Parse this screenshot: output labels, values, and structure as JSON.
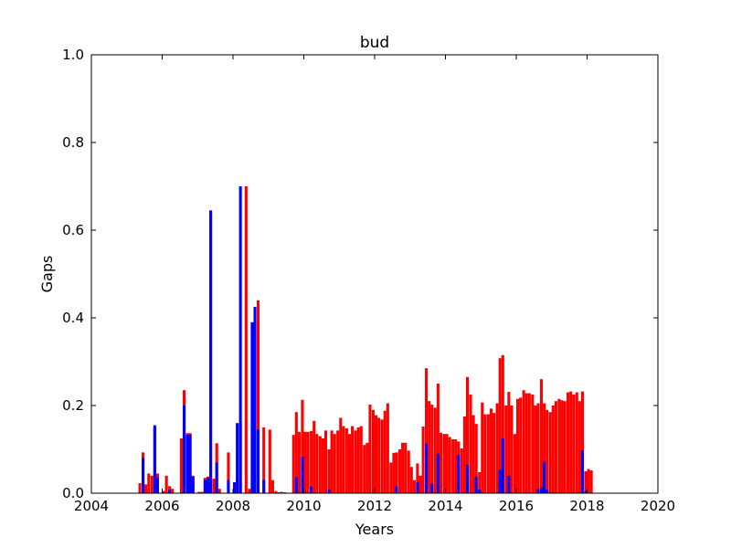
{
  "chart_data": {
    "type": "bar",
    "title": "bud",
    "xlabel": "Years",
    "ylabel": "Gaps",
    "xlim": [
      2004,
      2020
    ],
    "ylim": [
      0,
      1.0
    ],
    "xticks": [
      "2004",
      "2006",
      "2008",
      "2010",
      "2012",
      "2014",
      "2016",
      "2018",
      "2020"
    ],
    "yticks": [
      "0.0",
      "0.2",
      "0.4",
      "0.6",
      "0.8",
      "1.0"
    ],
    "grid": false,
    "bar_width_years": 0.08,
    "series": [
      {
        "color": "#ff0000",
        "x": [
          2005.33,
          2005.42,
          2005.5,
          2005.58,
          2005.67,
          2005.75,
          2005.83,
          2006.0,
          2006.08,
          2006.17,
          2006.25,
          2006.5,
          2006.58,
          2006.67,
          2006.75,
          2006.83,
          2007.0,
          2007.08,
          2007.17,
          2007.25,
          2007.33,
          2007.42,
          2007.5,
          2007.58,
          2007.83,
          2008.0,
          2008.08,
          2008.17,
          2008.33,
          2008.42,
          2008.5,
          2008.58,
          2008.67,
          2008.83,
          2009.0,
          2009.08,
          2009.17,
          2009.25,
          2009.33,
          2009.42,
          2009.67,
          2009.75,
          2009.83,
          2009.92,
          2010.0,
          2010.08,
          2010.17,
          2010.25,
          2010.33,
          2010.42,
          2010.5,
          2010.58,
          2010.67,
          2010.75,
          2010.83,
          2010.92,
          2011.0,
          2011.08,
          2011.17,
          2011.25,
          2011.33,
          2011.42,
          2011.5,
          2011.58,
          2011.67,
          2011.75,
          2011.83,
          2011.92,
          2012.0,
          2012.08,
          2012.17,
          2012.25,
          2012.33,
          2012.42,
          2012.5,
          2012.58,
          2012.67,
          2012.75,
          2012.83,
          2012.92,
          2013.0,
          2013.08,
          2013.17,
          2013.25,
          2013.33,
          2013.42,
          2013.5,
          2013.58,
          2013.67,
          2013.75,
          2013.83,
          2013.92,
          2014.0,
          2014.08,
          2014.17,
          2014.25,
          2014.33,
          2014.42,
          2014.5,
          2014.58,
          2014.67,
          2014.75,
          2014.83,
          2014.92,
          2015.0,
          2015.08,
          2015.17,
          2015.25,
          2015.33,
          2015.42,
          2015.5,
          2015.58,
          2015.67,
          2015.75,
          2015.83,
          2015.92,
          2016.0,
          2016.08,
          2016.17,
          2016.25,
          2016.33,
          2016.42,
          2016.5,
          2016.58,
          2016.67,
          2016.75,
          2016.83,
          2016.92,
          2017.0,
          2017.08,
          2017.17,
          2017.25,
          2017.33,
          2017.42,
          2017.5,
          2017.58,
          2017.67,
          2017.75,
          2017.83,
          2017.92,
          2018.0,
          2018.08
        ],
        "values": [
          0.023,
          0.093,
          0.02,
          0.045,
          0.04,
          0.15,
          0.045,
          0.005,
          0.04,
          0.016,
          0.01,
          0.125,
          0.235,
          0.137,
          0.137,
          0.04,
          0.003,
          0.003,
          0.035,
          0.038,
          0.645,
          0.033,
          0.114,
          0.01,
          0.093,
          0.005,
          0.03,
          0.16,
          0.7,
          0.01,
          0.005,
          0.39,
          0.44,
          0.15,
          0.145,
          0.03,
          0.005,
          0.002,
          0.003,
          0.002,
          0.133,
          0.185,
          0.14,
          0.213,
          0.14,
          0.14,
          0.142,
          0.165,
          0.135,
          0.13,
          0.125,
          0.143,
          0.1,
          0.143,
          0.135,
          0.143,
          0.172,
          0.153,
          0.148,
          0.135,
          0.153,
          0.143,
          0.15,
          0.153,
          0.11,
          0.115,
          0.202,
          0.19,
          0.178,
          0.172,
          0.168,
          0.188,
          0.205,
          0.07,
          0.092,
          0.093,
          0.1,
          0.115,
          0.115,
          0.097,
          0.06,
          0.03,
          0.068,
          0.04,
          0.152,
          0.285,
          0.21,
          0.202,
          0.195,
          0.25,
          0.138,
          0.135,
          0.135,
          0.128,
          0.123,
          0.123,
          0.118,
          0.102,
          0.175,
          0.265,
          0.225,
          0.178,
          0.158,
          0.048,
          0.207,
          0.18,
          0.18,
          0.193,
          0.183,
          0.205,
          0.308,
          0.315,
          0.2,
          0.231,
          0.2,
          0.135,
          0.215,
          0.218,
          0.235,
          0.228,
          0.228,
          0.225,
          0.2,
          0.205,
          0.26,
          0.205,
          0.19,
          0.185,
          0.2,
          0.21,
          0.215,
          0.212,
          0.21,
          0.23,
          0.232,
          0.225,
          0.23,
          0.21,
          0.232,
          0.05,
          0.055,
          0.052
        ]
      },
      {
        "color": "#0000ff",
        "x": [
          2005.42,
          2005.75,
          2005.83,
          2006.17,
          2006.58,
          2006.67,
          2006.75,
          2006.83,
          2007.17,
          2007.25,
          2007.33,
          2007.5,
          2007.83,
          2008.0,
          2008.08,
          2008.17,
          2008.5,
          2008.58,
          2008.67,
          2008.83,
          2009.75,
          2009.92,
          2010.17,
          2010.67,
          2012.58,
          2013.17,
          2013.42,
          2013.58,
          2013.75,
          2014.33,
          2014.58,
          2014.83,
          2014.92,
          2015.5,
          2015.58,
          2015.75,
          2016.58,
          2016.67,
          2016.75,
          2016.83,
          2017.83,
          2017.92
        ],
        "values": [
          0.08,
          0.155,
          0.035,
          0.008,
          0.2,
          0.133,
          0.133,
          0.037,
          0.03,
          0.035,
          0.645,
          0.07,
          0.03,
          0.025,
          0.16,
          0.7,
          0.39,
          0.425,
          0.145,
          0.03,
          0.037,
          0.083,
          0.015,
          0.008,
          0.016,
          0.025,
          0.113,
          0.022,
          0.09,
          0.088,
          0.065,
          0.038,
          0.008,
          0.053,
          0.125,
          0.04,
          0.01,
          0.013,
          0.072,
          0.008,
          0.098,
          0.005
        ]
      }
    ]
  }
}
